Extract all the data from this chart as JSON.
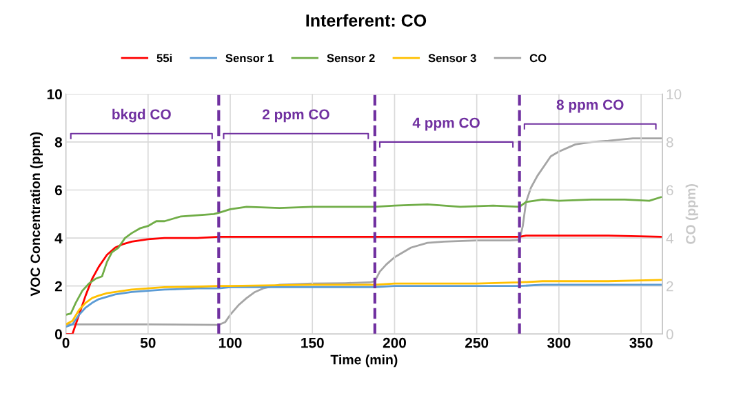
{
  "chart_data": {
    "type": "line",
    "title": "Interferent: CO",
    "xlabel": "Time (min)",
    "ylabel": "VOC Concentration (ppm)",
    "y2label": "CO (ppm)",
    "xlim": [
      0,
      363
    ],
    "xticks": [
      0,
      50,
      100,
      150,
      200,
      250,
      300,
      350
    ],
    "ylim": [
      0,
      10
    ],
    "yticks": [
      0,
      2,
      4,
      6,
      8,
      10
    ],
    "y2lim": [
      0,
      10
    ],
    "y2ticks": [
      0,
      2,
      4,
      6,
      8,
      10
    ],
    "grid": true,
    "legend": "top",
    "marker": "none",
    "line_style": "solid",
    "series": [
      {
        "name": "55i",
        "color": "#ff0000",
        "x": [
          0,
          4,
          8,
          12,
          16,
          20,
          25,
          30,
          35,
          40,
          50,
          60,
          70,
          80,
          93,
          100,
          150,
          188,
          200,
          250,
          276,
          280,
          300,
          330,
          362
        ],
        "values": [
          0,
          0,
          0.8,
          1.6,
          2.3,
          2.8,
          3.3,
          3.6,
          3.75,
          3.85,
          3.95,
          4.0,
          4.0,
          4.0,
          4.05,
          4.05,
          4.05,
          4.05,
          4.05,
          4.05,
          4.05,
          4.1,
          4.1,
          4.1,
          4.05
        ]
      },
      {
        "name": "Sensor 1",
        "color": "#5b9bd5",
        "x": [
          0,
          4,
          8,
          12,
          16,
          20,
          25,
          30,
          40,
          50,
          60,
          80,
          93,
          100,
          150,
          188,
          200,
          250,
          276,
          290,
          330,
          362
        ],
        "values": [
          0.3,
          0.4,
          0.8,
          1.1,
          1.3,
          1.45,
          1.55,
          1.65,
          1.75,
          1.8,
          1.85,
          1.9,
          1.9,
          1.95,
          1.95,
          1.95,
          2.0,
          2.0,
          2.0,
          2.05,
          2.05,
          2.05
        ]
      },
      {
        "name": "Sensor 2",
        "color": "#70ad47",
        "x": [
          0,
          3,
          6,
          10,
          14,
          18,
          22,
          25,
          28,
          32,
          36,
          40,
          45,
          50,
          55,
          60,
          65,
          70,
          80,
          90,
          93,
          100,
          110,
          130,
          150,
          170,
          188,
          200,
          220,
          240,
          260,
          276,
          280,
          290,
          300,
          320,
          340,
          355,
          362
        ],
        "values": [
          0.8,
          0.85,
          1.3,
          1.8,
          2.1,
          2.3,
          2.4,
          3.0,
          3.4,
          3.6,
          4.0,
          4.2,
          4.4,
          4.5,
          4.7,
          4.7,
          4.8,
          4.9,
          4.95,
          5.0,
          5.05,
          5.2,
          5.3,
          5.25,
          5.3,
          5.3,
          5.3,
          5.35,
          5.4,
          5.3,
          5.35,
          5.3,
          5.5,
          5.6,
          5.55,
          5.6,
          5.6,
          5.55,
          5.7
        ]
      },
      {
        "name": "Sensor 3",
        "color": "#ffc000",
        "x": [
          0,
          4,
          8,
          12,
          16,
          20,
          25,
          30,
          40,
          50,
          60,
          80,
          93,
          100,
          150,
          188,
          200,
          250,
          276,
          290,
          330,
          362
        ],
        "values": [
          0.4,
          0.55,
          1.0,
          1.3,
          1.5,
          1.6,
          1.7,
          1.75,
          1.85,
          1.9,
          1.95,
          1.97,
          2.0,
          2.0,
          2.05,
          2.05,
          2.1,
          2.1,
          2.15,
          2.2,
          2.2,
          2.25
        ]
      },
      {
        "name": "CO",
        "color": "#a5a5a5",
        "axis": "y2",
        "x": [
          0,
          50,
          93,
          97,
          100,
          105,
          110,
          115,
          120,
          130,
          150,
          170,
          185,
          188,
          191,
          195,
          200,
          205,
          210,
          220,
          230,
          250,
          270,
          276,
          278,
          280,
          283,
          287,
          290,
          295,
          300,
          310,
          320,
          330,
          345,
          362
        ],
        "values": [
          0.4,
          0.4,
          0.38,
          0.5,
          0.8,
          1.2,
          1.5,
          1.75,
          1.9,
          2.05,
          2.1,
          2.12,
          2.15,
          2.2,
          2.6,
          2.9,
          3.2,
          3.4,
          3.6,
          3.8,
          3.85,
          3.9,
          3.9,
          3.92,
          4.5,
          5.5,
          6.1,
          6.6,
          6.9,
          7.4,
          7.6,
          7.9,
          8.0,
          8.05,
          8.15,
          8.15
        ]
      }
    ],
    "ref_lines": [
      {
        "axis": "x",
        "value": 93,
        "color": "#7030a0",
        "line_style": "dashed"
      },
      {
        "axis": "x",
        "value": 188,
        "color": "#7030a0",
        "line_style": "dashed"
      },
      {
        "axis": "x",
        "value": 276,
        "color": "#7030a0",
        "line_style": "dashed"
      }
    ],
    "annotations": [
      "bkgd CO",
      "2 ppm CO",
      "4 ppm CO",
      "8 ppm CO"
    ]
  }
}
